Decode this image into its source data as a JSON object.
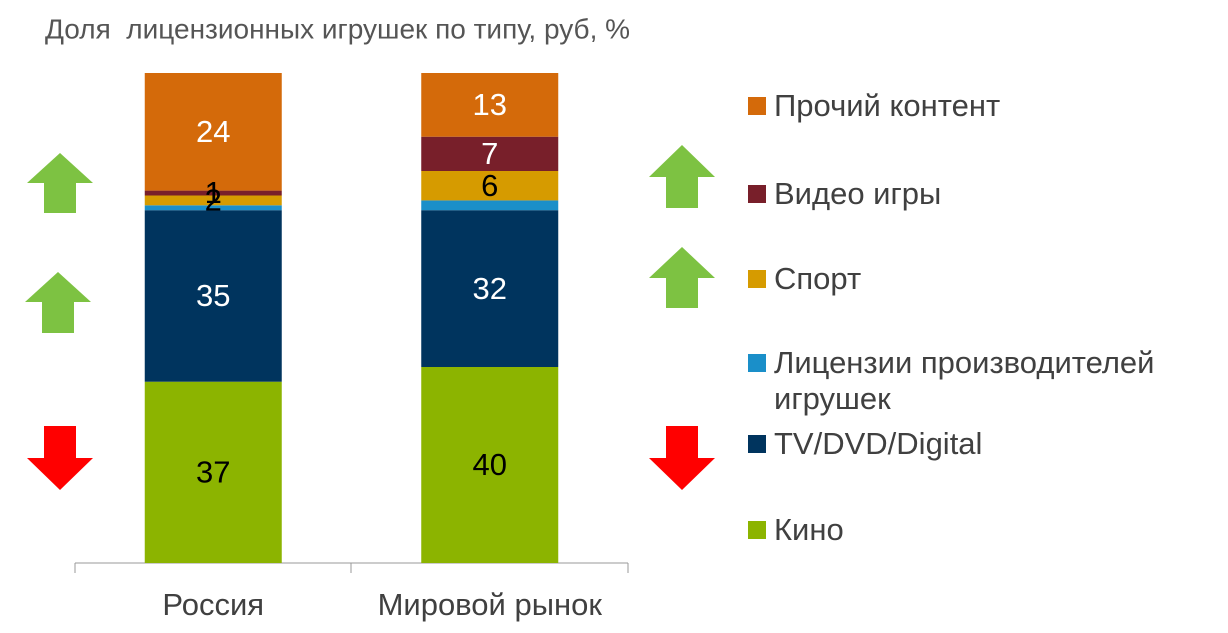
{
  "chart_data": {
    "type": "stacked_bar",
    "title": "Доля  лицензионных игрушек по типу, руб, %",
    "categories": [
      "Россия",
      "Мировой рынок"
    ],
    "ylim": [
      0,
      100
    ],
    "series": [
      {
        "name": "Кино",
        "color": "#8cb400",
        "values": [
          37,
          40
        ],
        "value_labels": [
          "37",
          "40"
        ]
      },
      {
        "name": "TV/DVD/Digital",
        "color": "#00345e",
        "values": [
          35,
          32
        ],
        "value_labels": [
          "35",
          "32"
        ]
      },
      {
        "name": "Лицензии производителей игрушек",
        "color": "#1a8fc9",
        "values": [
          1,
          2
        ],
        "value_labels": [
          null,
          null
        ]
      },
      {
        "name": "Спорт",
        "color": "#d69b00",
        "values": [
          2,
          6
        ],
        "value_labels": [
          "2",
          "6"
        ]
      },
      {
        "name": "Видео игры",
        "color": "#781f2a",
        "values": [
          1,
          7
        ],
        "value_labels": [
          "1",
          "7"
        ]
      },
      {
        "name": "Прочий контент",
        "color": "#d46a0a",
        "values": [
          24,
          13
        ],
        "value_labels": [
          "24",
          "13"
        ]
      }
    ]
  }
}
